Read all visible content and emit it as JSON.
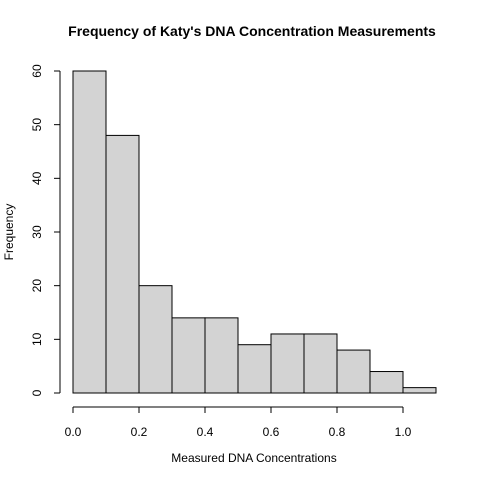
{
  "chart_data": {
    "type": "bar",
    "title": "Frequency of Katy's DNA Concentration Measurements",
    "xlabel": "Measured DNA Concentrations",
    "ylabel": "Frequency",
    "bin_edges": [
      0.0,
      0.1,
      0.2,
      0.3,
      0.4,
      0.5,
      0.6,
      0.7,
      0.8,
      0.9,
      1.0,
      1.1
    ],
    "values": [
      60,
      48,
      20,
      14,
      14,
      9,
      11,
      11,
      8,
      4,
      1
    ],
    "xlim": [
      0.0,
      1.1
    ],
    "ylim": [
      0,
      60
    ],
    "x_ticks": [
      "0.0",
      "0.2",
      "0.4",
      "0.6",
      "0.8",
      "1.0"
    ],
    "y_ticks": [
      "0",
      "10",
      "20",
      "30",
      "40",
      "50",
      "60"
    ],
    "bar_color": "#d3d3d3",
    "grid": false,
    "legend": "none"
  }
}
